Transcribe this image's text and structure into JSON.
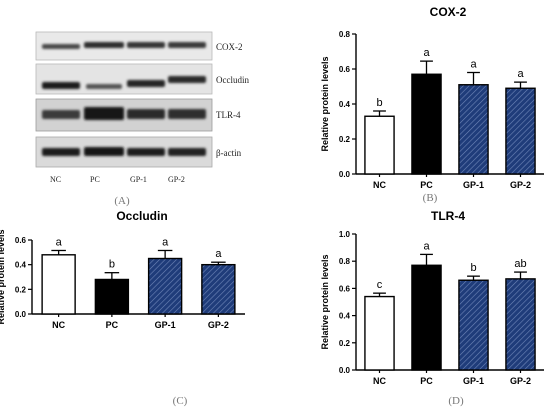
{
  "blot": {
    "bands": [
      "COX-2",
      "Occludin",
      "TLR-4",
      "β-actin"
    ],
    "lanes": [
      "NC",
      "PC",
      "GP-1",
      "GP-2"
    ]
  },
  "panel_labels": [
    "(A)",
    "(B)",
    "(C)",
    "(D)"
  ],
  "colors": {
    "NC": "#ffffff",
    "PC": "#000000",
    "GP": "#1f3c7a",
    "hatch": "#6f86b8"
  },
  "chart_data": [
    {
      "panel": "(B)",
      "type": "bar",
      "title": "COX-2",
      "ylabel": "Relative protein levels",
      "xlabel": "",
      "categories": [
        "NC",
        "PC",
        "GP-1",
        "GP-2"
      ],
      "values": [
        0.33,
        0.57,
        0.51,
        0.49
      ],
      "errors": [
        0.03,
        0.075,
        0.07,
        0.035
      ],
      "annotations": [
        "b",
        "a",
        "a",
        "a"
      ],
      "ylim": [
        0,
        0.8
      ],
      "yticks": [
        "0.0",
        "0.2",
        "0.4",
        "0.6",
        "0.8"
      ]
    },
    {
      "panel": "(C)",
      "type": "bar",
      "title": "Occludin",
      "ylabel": "Relative protein levels",
      "xlabel": "",
      "categories": [
        "NC",
        "PC",
        "GP-1",
        "GP-2"
      ],
      "values": [
        0.48,
        0.28,
        0.45,
        0.4
      ],
      "errors": [
        0.035,
        0.055,
        0.065,
        0.02
      ],
      "annotations": [
        "a",
        "b",
        "a",
        "a"
      ],
      "ylim": [
        0,
        0.6
      ],
      "yticks": [
        "0.0",
        "0.2",
        "0.4",
        "0.6"
      ]
    },
    {
      "panel": "(D)",
      "type": "bar",
      "title": "TLR-4",
      "ylabel": "Relative protein levels",
      "xlabel": "",
      "categories": [
        "NC",
        "PC",
        "GP-1",
        "GP-2"
      ],
      "values": [
        0.54,
        0.77,
        0.66,
        0.67
      ],
      "errors": [
        0.025,
        0.08,
        0.03,
        0.05
      ],
      "annotations": [
        "c",
        "a",
        "b",
        "ab"
      ],
      "ylim": [
        0,
        1.0
      ],
      "yticks": [
        "0.0",
        "0.2",
        "0.4",
        "0.6",
        "0.8",
        "1.0"
      ]
    }
  ]
}
